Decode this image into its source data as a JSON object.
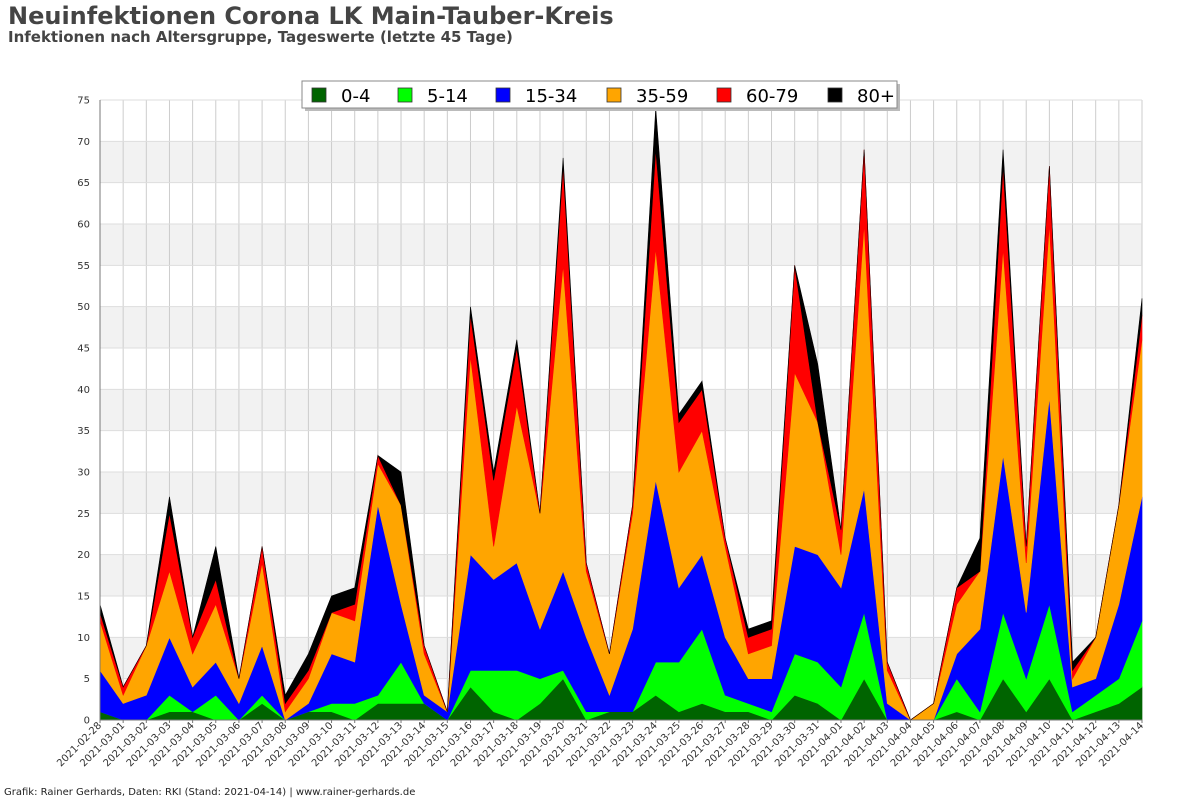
{
  "header": {
    "title": "Neuinfektionen Corona LK Main-Tauber-Kreis",
    "subtitle": "Infektionen nach Altersgruppe, Tageswerte (letzte 45 Tage)"
  },
  "footer": {
    "credit": "Grafik: Rainer Gerhards, Daten: RKI (Stand: 2021-04-14) | www.rainer-gerhards.de"
  },
  "chart_data": {
    "type": "area",
    "stacked": true,
    "title": "Neuinfektionen Corona LK Main-Tauber-Kreis",
    "subtitle": "Infektionen nach Altersgruppe, Tageswerte (letzte 45 Tage)",
    "xlabel": "",
    "ylabel": "",
    "ylim": [
      0,
      75
    ],
    "yticks": [
      0,
      5,
      10,
      15,
      20,
      25,
      30,
      35,
      40,
      45,
      50,
      55,
      60,
      65,
      70,
      75
    ],
    "grid": true,
    "legend_position": "top-center",
    "x": [
      "2021-02-28",
      "2021-03-01",
      "2021-03-02",
      "2021-03-03",
      "2021-03-04",
      "2021-03-05",
      "2021-03-06",
      "2021-03-07",
      "2021-03-08",
      "2021-03-09",
      "2021-03-10",
      "2021-03-11",
      "2021-03-12",
      "2021-03-13",
      "2021-03-14",
      "2021-03-15",
      "2021-03-16",
      "2021-03-17",
      "2021-03-18",
      "2021-03-19",
      "2021-03-20",
      "2021-03-21",
      "2021-03-22",
      "2021-03-23",
      "2021-03-24",
      "2021-03-25",
      "2021-03-26",
      "2021-03-27",
      "2021-03-28",
      "2021-03-29",
      "2021-03-30",
      "2021-03-31",
      "2021-04-01",
      "2021-04-02",
      "2021-04-03",
      "2021-04-04",
      "2021-04-05",
      "2021-04-06",
      "2021-04-07",
      "2021-04-08",
      "2021-04-09",
      "2021-04-10",
      "2021-04-11",
      "2021-04-12",
      "2021-04-13",
      "2021-04-14"
    ],
    "series": [
      {
        "name": "0-4",
        "color": "#006400",
        "values": [
          1,
          0,
          0,
          1,
          1,
          0,
          0,
          2,
          0,
          1,
          1,
          0,
          2,
          2,
          2,
          0,
          4,
          1,
          0,
          2,
          5,
          0,
          1,
          1,
          3,
          1,
          2,
          1,
          1,
          0,
          3,
          2,
          0,
          5,
          0,
          0,
          0,
          1,
          0,
          5,
          1,
          5,
          0,
          1,
          2,
          4
        ]
      },
      {
        "name": "5-14",
        "color": "#00ff00",
        "values": [
          0,
          0,
          0,
          2,
          0,
          3,
          0,
          1,
          0,
          0,
          1,
          2,
          1,
          5,
          0,
          0,
          2,
          5,
          6,
          3,
          1,
          1,
          0,
          0,
          4,
          6,
          9,
          2,
          1,
          1,
          5,
          5,
          4,
          8,
          0,
          0,
          0,
          4,
          1,
          8,
          4,
          9,
          1,
          2,
          3,
          8
        ]
      },
      {
        "name": "15-34",
        "color": "#0000ff",
        "values": [
          5,
          2,
          3,
          7,
          3,
          4,
          2,
          6,
          0,
          1,
          6,
          5,
          23,
          7,
          1,
          1,
          14,
          11,
          13,
          6,
          12,
          9,
          2,
          10,
          22,
          9,
          9,
          7,
          3,
          4,
          13,
          13,
          12,
          15,
          2,
          0,
          0,
          3,
          10,
          19,
          8,
          25,
          3,
          2,
          9,
          15
        ]
      },
      {
        "name": "35-59",
        "color": "#ffa500",
        "values": [
          6,
          1,
          6,
          8,
          4,
          7,
          3,
          10,
          1,
          3,
          5,
          5,
          5,
          12,
          5,
          0,
          24,
          4,
          19,
          14,
          37,
          8,
          5,
          14,
          28,
          14,
          15,
          11,
          3,
          4,
          21,
          16,
          4,
          32,
          4,
          0,
          2,
          6,
          7,
          25,
          6,
          21,
          1,
          5,
          12,
          19
        ]
      },
      {
        "name": "60-79",
        "color": "#ff0000",
        "values": [
          1,
          1,
          0,
          7,
          2,
          3,
          0,
          2,
          1,
          1,
          0,
          2,
          1,
          0,
          1,
          0,
          5,
          8,
          7,
          0,
          12,
          1,
          0,
          1,
          12,
          6,
          5,
          1,
          2,
          2,
          13,
          0,
          3,
          9,
          1,
          0,
          0,
          2,
          0,
          10,
          2,
          7,
          1,
          0,
          0,
          3
        ]
      },
      {
        "name": "80+",
        "color": "#000000",
        "values": [
          1,
          0,
          0,
          2,
          0,
          4,
          0,
          0,
          1,
          2,
          2,
          2,
          0,
          4,
          0,
          0,
          1,
          1,
          1,
          0,
          1,
          0,
          0,
          0,
          5,
          1,
          1,
          0,
          1,
          1,
          0,
          7,
          0,
          0,
          0,
          0,
          0,
          0,
          4,
          2,
          0,
          0,
          1,
          0,
          0,
          2
        ]
      }
    ]
  }
}
